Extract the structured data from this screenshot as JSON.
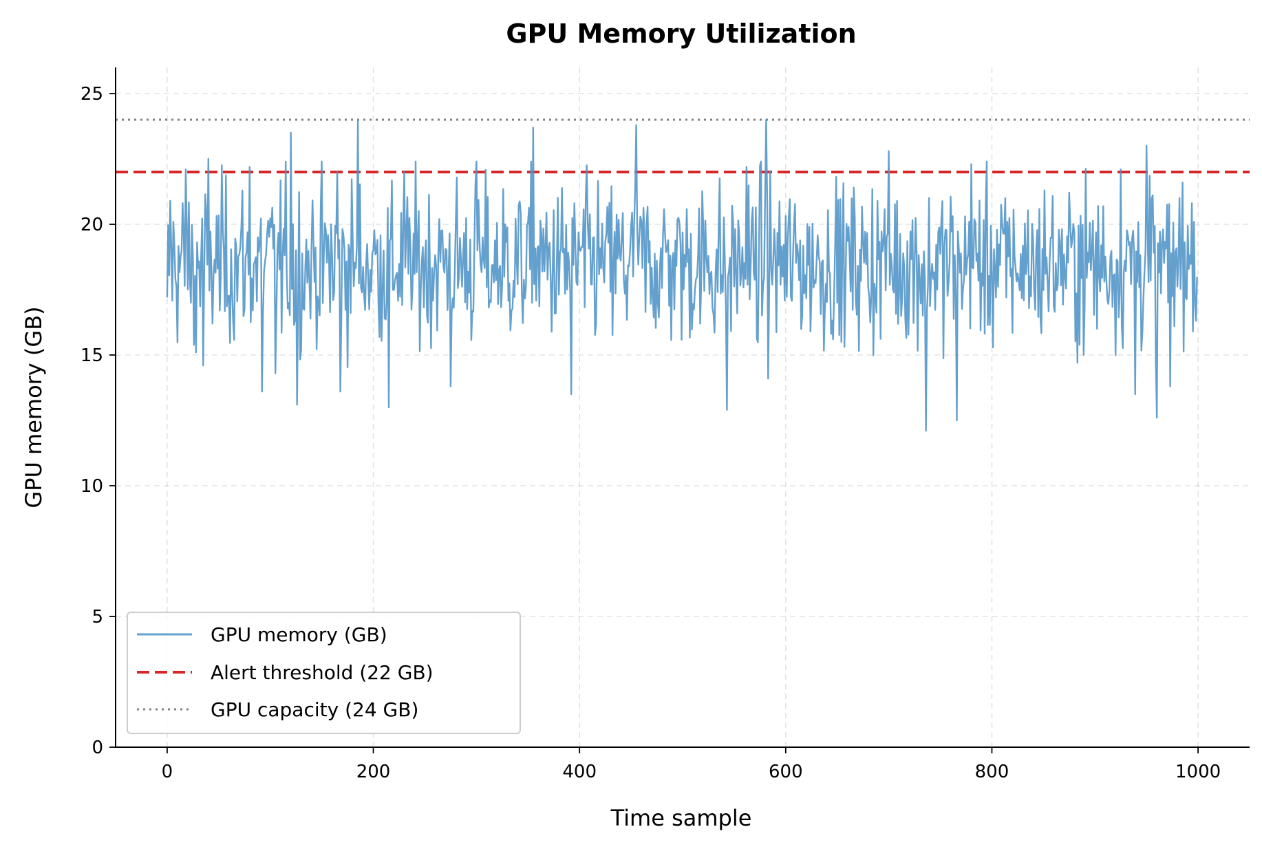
{
  "chart_data": {
    "type": "line",
    "title": "GPU Memory Utilization",
    "xlabel": "Time sample",
    "ylabel": "GPU memory (GB)",
    "xlim": [
      -50,
      1050
    ],
    "ylim": [
      0,
      26
    ],
    "xticks": [
      0,
      200,
      400,
      600,
      800,
      1000
    ],
    "yticks": [
      0,
      5,
      10,
      15,
      20,
      25
    ],
    "grid": true,
    "legend_location": "lower-left",
    "series": [
      {
        "name": "GPU memory (GB)",
        "color": "#4f93c7",
        "style": "solid",
        "sample_count": 1000,
        "mean": 18.5,
        "approx_range": [
          12.0,
          24.0
        ],
        "keypoints": [
          {
            "x": 0,
            "y": 17.2
          },
          {
            "x": 3,
            "y": 20.9
          },
          {
            "x": 18,
            "y": 22.1
          },
          {
            "x": 28,
            "y": 15.1
          },
          {
            "x": 35,
            "y": 14.6
          },
          {
            "x": 40,
            "y": 22.5
          },
          {
            "x": 80,
            "y": 22.2
          },
          {
            "x": 92,
            "y": 13.6
          },
          {
            "x": 105,
            "y": 14.3
          },
          {
            "x": 120,
            "y": 23.5
          },
          {
            "x": 126,
            "y": 13.1
          },
          {
            "x": 165,
            "y": 22.0
          },
          {
            "x": 168,
            "y": 13.6
          },
          {
            "x": 185,
            "y": 24.0
          },
          {
            "x": 215,
            "y": 13.0
          },
          {
            "x": 230,
            "y": 22.0
          },
          {
            "x": 275,
            "y": 13.8
          },
          {
            "x": 300,
            "y": 22.4
          },
          {
            "x": 355,
            "y": 23.7
          },
          {
            "x": 392,
            "y": 13.5
          },
          {
            "x": 455,
            "y": 23.8
          },
          {
            "x": 543,
            "y": 12.9
          },
          {
            "x": 562,
            "y": 22.2
          },
          {
            "x": 581,
            "y": 24.0
          },
          {
            "x": 583,
            "y": 14.1
          },
          {
            "x": 700,
            "y": 22.8
          },
          {
            "x": 736,
            "y": 12.1
          },
          {
            "x": 766,
            "y": 12.5
          },
          {
            "x": 780,
            "y": 22.3
          },
          {
            "x": 925,
            "y": 22.1
          },
          {
            "x": 939,
            "y": 13.5
          },
          {
            "x": 950,
            "y": 23.0
          },
          {
            "x": 960,
            "y": 12.6
          },
          {
            "x": 973,
            "y": 13.8
          },
          {
            "x": 985,
            "y": 21.6
          },
          {
            "x": 995,
            "y": 15.9
          },
          {
            "x": 999,
            "y": 18.0
          }
        ]
      },
      {
        "name": "Alert threshold (22 GB)",
        "color": "#d62728",
        "style": "dashed",
        "y": 22
      },
      {
        "name": "GPU capacity (24 GB)",
        "color": "#808080",
        "style": "dotted",
        "y": 24
      }
    ]
  }
}
